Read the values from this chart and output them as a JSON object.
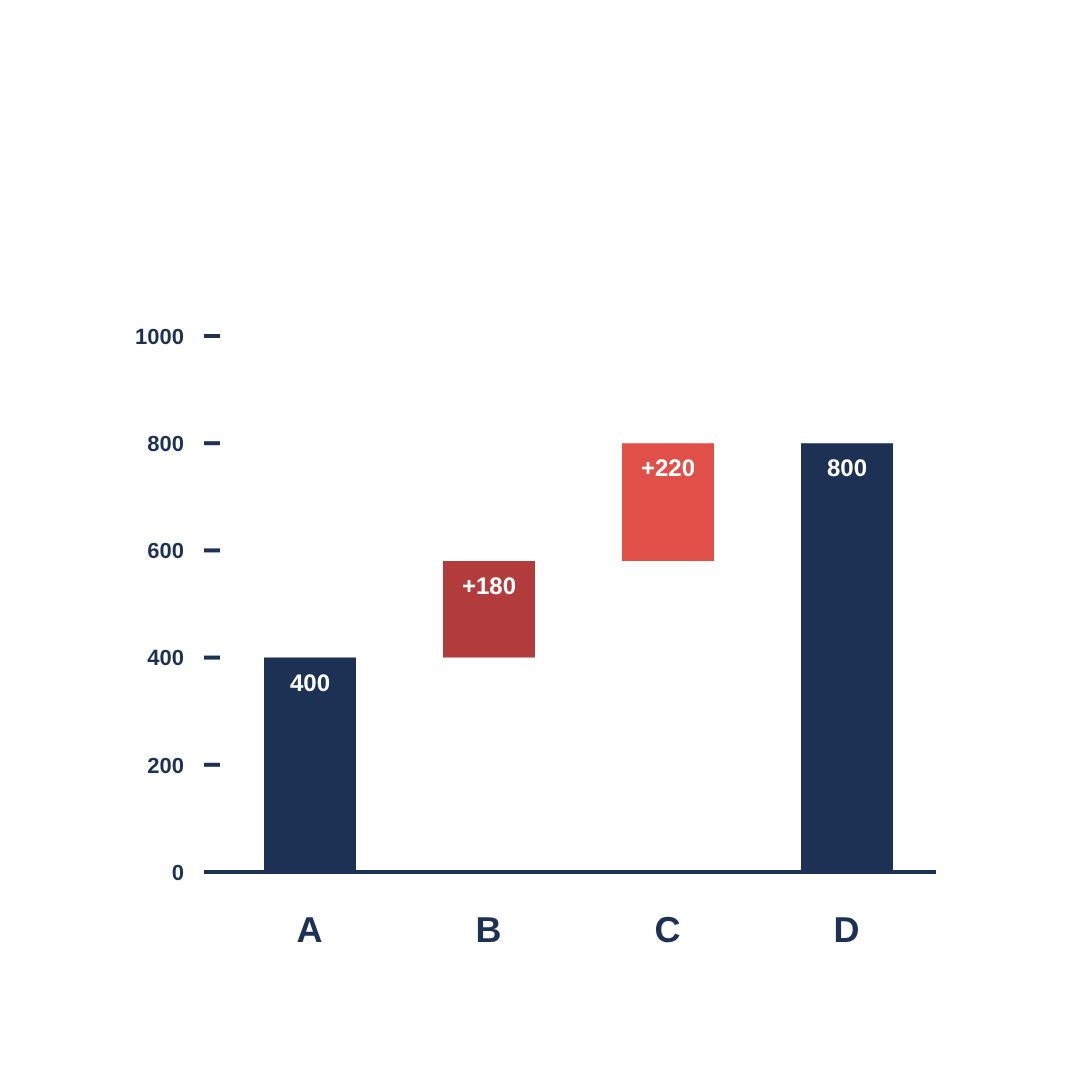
{
  "chart_data": {
    "type": "bar",
    "categories": [
      "A",
      "B",
      "C",
      "D"
    ],
    "values": [
      400,
      180,
      220,
      800
    ],
    "base": [
      0,
      400,
      580,
      0
    ],
    "colors": [
      "#1c3153",
      "#b23c3c",
      "#e04f48",
      "#1c3153"
    ],
    "value_labels": [
      "400",
      "+180",
      "+220",
      "800"
    ],
    "ylim": [
      0,
      1000
    ],
    "yticks": [
      0,
      200,
      400,
      600,
      800,
      1000
    ],
    "grid": false,
    "legend": false
  }
}
